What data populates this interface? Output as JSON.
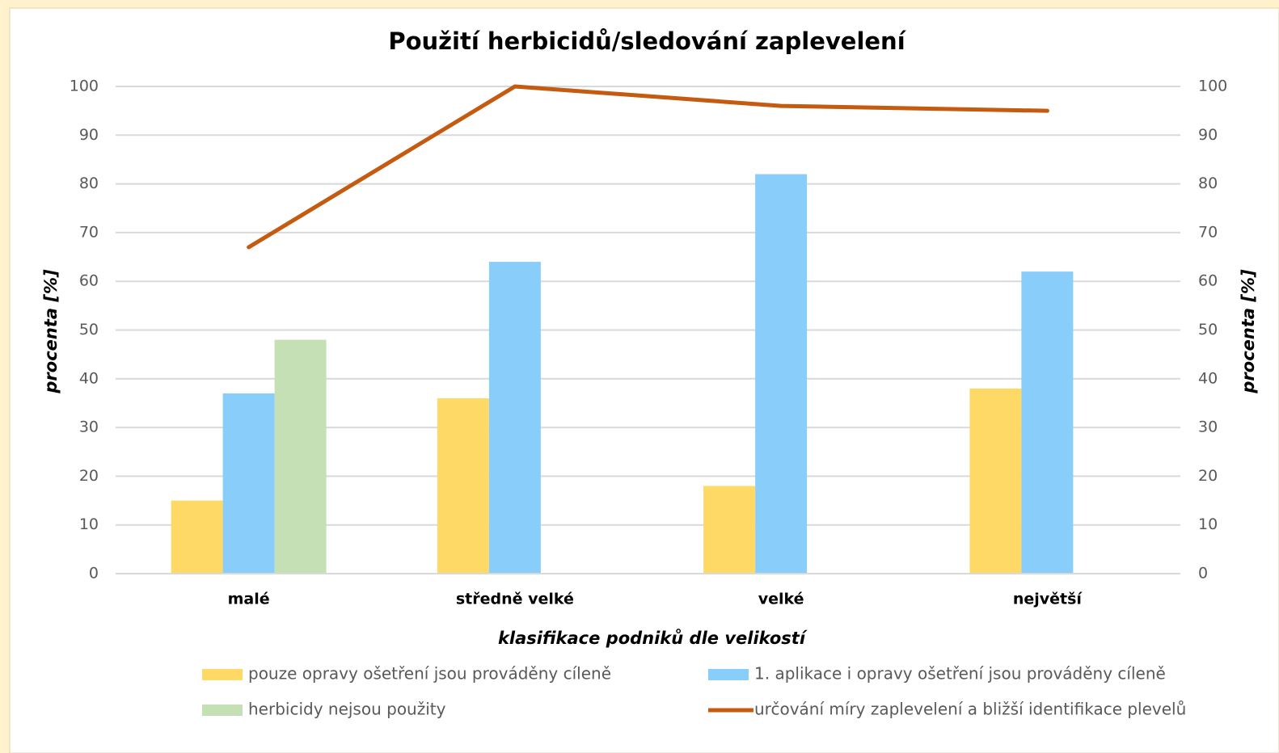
{
  "chart_data": {
    "type": "bar",
    "title": "Použití herbicidů/sledování zaplevelení",
    "x_label": "klasifikace podniků dle velikostí",
    "y_label": "procenta [%]",
    "y2_label": "procenta [%]",
    "categories": [
      "malé",
      "středně velké",
      "velké",
      "největší"
    ],
    "series": [
      {
        "name": "pouze opravy ošetření jsou prováděny cíleně",
        "color": "#ffd966",
        "values": [
          15,
          36,
          18,
          38
        ]
      },
      {
        "name": "1. aplikace i opravy ošetření jsou prováděny cíleně",
        "color": "#89cdfb",
        "values": [
          37,
          64,
          82,
          62
        ]
      },
      {
        "name": "herbicidy nejsou použity",
        "color": "#c5e0b4",
        "values": [
          48,
          null,
          null,
          null
        ]
      },
      {
        "name": "určování míry zaplevelení a bližší identifikace plevelů",
        "color": "#c55a11",
        "type": "line",
        "axis": "y2",
        "values": [
          67,
          100,
          96,
          95
        ]
      }
    ],
    "ylim": [
      0,
      100
    ],
    "yticks": [
      0,
      10,
      20,
      30,
      40,
      50,
      60,
      70,
      80,
      90,
      100
    ],
    "y2lim": [
      0,
      100
    ],
    "y2ticks": [
      0,
      10,
      20,
      30,
      40,
      50,
      60,
      70,
      80,
      90,
      100
    ],
    "grid": true
  }
}
